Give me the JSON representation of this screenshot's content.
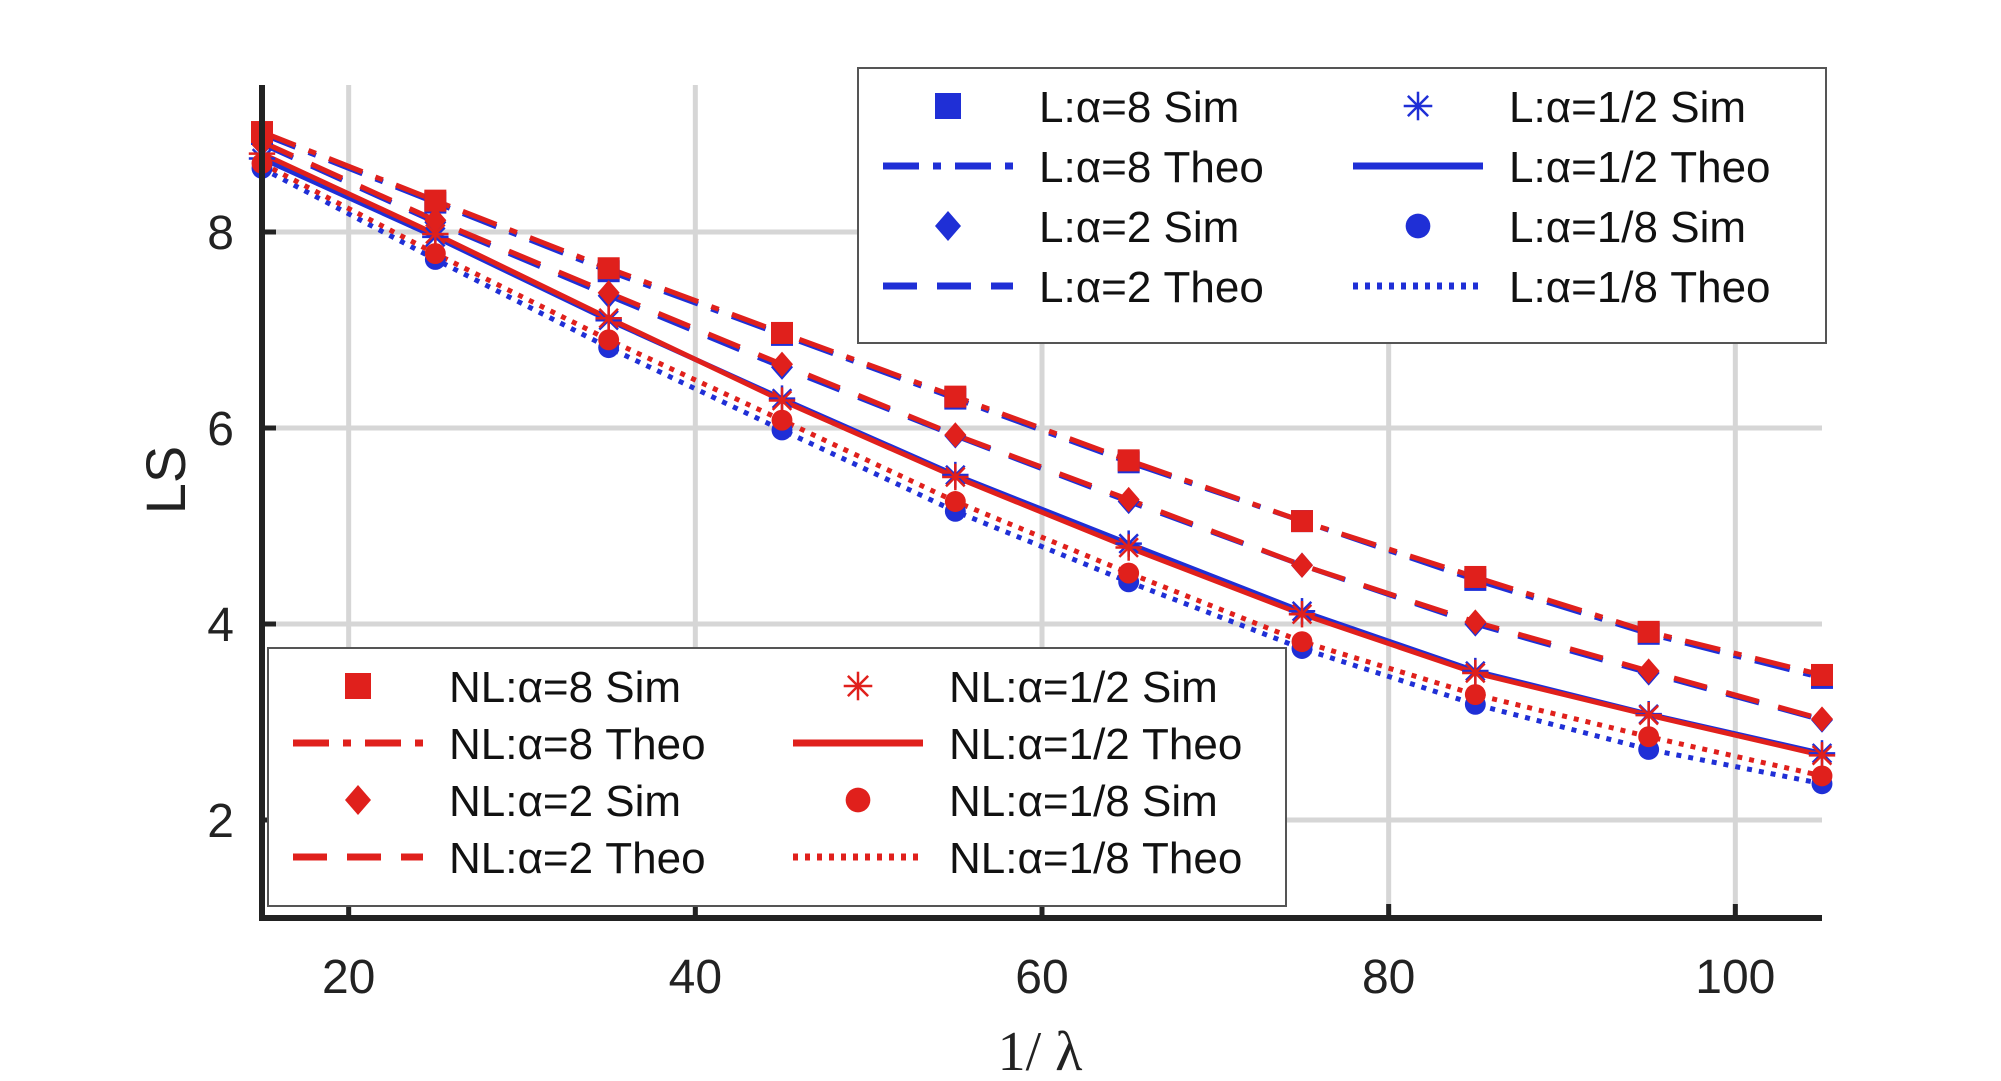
{
  "chart_data": {
    "type": "line",
    "xlabel": "1/ λ",
    "ylabel": "LS",
    "xlim": [
      15,
      105
    ],
    "ylim": [
      1,
      9.5
    ],
    "xticks": [
      20,
      40,
      60,
      80,
      100
    ],
    "yticks": [
      2,
      4,
      6,
      8
    ],
    "grid": true,
    "x": [
      15,
      25,
      35,
      45,
      55,
      65,
      75,
      85,
      95,
      105
    ],
    "colors": {
      "L": "#1f2fd6",
      "NL": "#e0201c"
    },
    "legends": [
      {
        "placement": "top-right",
        "group": "L",
        "entries": [
          {
            "label": "L:α=8 Sim",
            "ref": "L8",
            "kind": "sim"
          },
          {
            "label": "L:α=1/2 Sim",
            "ref": "L05",
            "kind": "sim"
          },
          {
            "label": "L:α=8 Theo",
            "ref": "L8",
            "kind": "theo"
          },
          {
            "label": "L:α=1/2 Theo",
            "ref": "L05",
            "kind": "theo"
          },
          {
            "label": "L:α=2 Sim",
            "ref": "L2",
            "kind": "sim"
          },
          {
            "label": "L:α=1/8 Sim",
            "ref": "L0125",
            "kind": "sim"
          },
          {
            "label": "L:α=2 Theo",
            "ref": "L2",
            "kind": "theo"
          },
          {
            "label": "L:α=1/8 Theo",
            "ref": "L0125",
            "kind": "theo"
          }
        ]
      },
      {
        "placement": "bottom-left",
        "group": "NL",
        "entries": [
          {
            "label": "NL:α=8 Sim",
            "ref": "NL8",
            "kind": "sim"
          },
          {
            "label": "NL:α=1/2 Sim",
            "ref": "NL05",
            "kind": "sim"
          },
          {
            "label": "NL:α=8 Theo",
            "ref": "NL8",
            "kind": "theo"
          },
          {
            "label": "NL:α=1/2 Theo",
            "ref": "NL05",
            "kind": "theo"
          },
          {
            "label": "NL:α=2 Sim",
            "ref": "NL2",
            "kind": "sim"
          },
          {
            "label": "NL:α=1/8 Sim",
            "ref": "NL0125",
            "kind": "sim"
          },
          {
            "label": "NL:α=2 Theo",
            "ref": "NL2",
            "kind": "theo"
          },
          {
            "label": "NL:α=1/8 Theo",
            "ref": "NL0125",
            "kind": "theo"
          }
        ]
      }
    ],
    "series": [
      {
        "id": "L8",
        "group": "L",
        "marker": "square",
        "line": "dashdot",
        "values": [
          9.0,
          8.3,
          7.6,
          6.95,
          6.3,
          5.65,
          5.05,
          4.45,
          3.9,
          3.45
        ]
      },
      {
        "id": "L2",
        "group": "L",
        "marker": "diamond",
        "line": "dashed",
        "values": [
          8.9,
          8.1,
          7.35,
          6.62,
          5.92,
          5.25,
          4.6,
          4.0,
          3.5,
          3.02
        ]
      },
      {
        "id": "L05",
        "group": "L",
        "marker": "asterisk",
        "line": "solid",
        "values": [
          8.75,
          7.95,
          7.1,
          6.3,
          5.52,
          4.82,
          4.13,
          3.52,
          3.08,
          2.68
        ]
      },
      {
        "id": "L0125",
        "group": "L",
        "marker": "circle",
        "line": "dotted",
        "values": [
          8.65,
          7.72,
          6.82,
          5.98,
          5.15,
          4.43,
          3.75,
          3.18,
          2.72,
          2.37
        ]
      },
      {
        "id": "NL8",
        "group": "NL",
        "marker": "square",
        "line": "dashdot",
        "values": [
          9.02,
          8.32,
          7.63,
          6.97,
          6.32,
          5.67,
          5.05,
          4.48,
          3.92,
          3.48
        ]
      },
      {
        "id": "NL2",
        "group": "NL",
        "marker": "diamond",
        "line": "dashed",
        "values": [
          8.92,
          8.12,
          7.38,
          6.65,
          5.93,
          5.27,
          4.6,
          4.02,
          3.52,
          3.03
        ]
      },
      {
        "id": "NL05",
        "group": "NL",
        "marker": "asterisk",
        "line": "solid",
        "values": [
          8.8,
          7.98,
          7.12,
          6.28,
          5.5,
          4.78,
          4.1,
          3.5,
          3.07,
          2.66
        ]
      },
      {
        "id": "NL0125",
        "group": "NL",
        "marker": "circle",
        "line": "dotted",
        "values": [
          8.7,
          7.78,
          6.9,
          6.08,
          5.25,
          4.52,
          3.82,
          3.28,
          2.85,
          2.45
        ]
      }
    ]
  }
}
